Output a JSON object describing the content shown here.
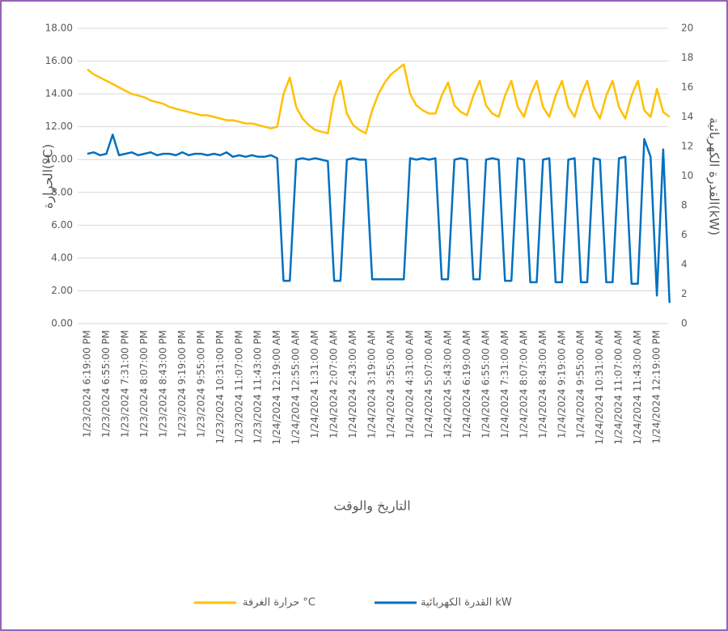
{
  "chart_data": {
    "type": "line",
    "categories": [
      "1/23/2024 6:19:00 PM",
      null,
      null,
      "1/23/2024 6:55:00 PM",
      null,
      null,
      "1/23/2024 7:31:00 PM",
      null,
      null,
      "1/23/2024 8:07:00 PM",
      null,
      null,
      "1/23/2024 8:43:00 PM",
      null,
      null,
      "1/23/2024 9:19:00 PM",
      null,
      null,
      "1/23/2024 9:55:00 PM",
      null,
      null,
      "1/23/2024 10:31:00 PM",
      null,
      null,
      "1/23/2024 11:07:00 PM",
      null,
      null,
      "1/23/2024 11:43:00 PM",
      null,
      null,
      "1/24/2024 12:19:00 AM",
      null,
      null,
      "1/24/2024 12:55:00 AM",
      null,
      null,
      "1/24/2024 1:31:00 AM",
      null,
      null,
      "1/24/2024 2:07:00 AM",
      null,
      null,
      "1/24/2024 2:43:00 AM",
      null,
      null,
      "1/24/2024 3:19:00 AM",
      null,
      null,
      "1/24/2024 3:55:00 AM",
      null,
      null,
      "1/24/2024 4:31:00 AM",
      null,
      null,
      "1/24/2024 5:07:00 AM",
      null,
      null,
      "1/24/2024 5:43:00 AM",
      null,
      null,
      "1/24/2024 6:19:00 AM",
      null,
      null,
      "1/24/2024 6:55:00 AM",
      null,
      null,
      "1/24/2024 7:31:00 AM",
      null,
      null,
      "1/24/2024 8:07:00 AM",
      null,
      null,
      "1/24/2024 8:43:00 AM",
      null,
      null,
      "1/24/2024 9:19:00 AM",
      null,
      null,
      "1/24/2024 9:55:00 AM",
      null,
      null,
      "1/24/2024 10:31:00 AM",
      null,
      null,
      "1/24/2024 11:07:00 AM",
      null,
      null,
      "1/24/2024 11:43:00 AM",
      null,
      null,
      "1/24/2024 12:19:00 PM",
      null,
      null
    ],
    "series": [
      {
        "name": "حرارة الغرفة °C",
        "color": "#FFC000",
        "axis": "y",
        "values": [
          15.5,
          15.2,
          15.0,
          14.8,
          14.6,
          14.4,
          14.2,
          14.0,
          13.9,
          13.8,
          13.6,
          13.5,
          13.4,
          13.2,
          13.1,
          13.0,
          12.9,
          12.8,
          12.7,
          12.7,
          12.6,
          12.5,
          12.4,
          12.4,
          12.3,
          12.2,
          12.2,
          12.1,
          12.0,
          11.9,
          12.0,
          14.0,
          15.0,
          13.2,
          12.5,
          12.1,
          11.8,
          11.7,
          11.6,
          13.8,
          14.8,
          12.8,
          12.1,
          11.8,
          11.6,
          13.0,
          14.0,
          14.7,
          15.2,
          15.5,
          15.8,
          14.0,
          13.3,
          13.0,
          12.8,
          12.8,
          13.9,
          14.7,
          13.3,
          12.9,
          12.7,
          13.9,
          14.8,
          13.3,
          12.8,
          12.6,
          13.9,
          14.8,
          13.2,
          12.6,
          13.9,
          14.8,
          13.2,
          12.6,
          13.9,
          14.8,
          13.2,
          12.6,
          13.9,
          14.8,
          13.2,
          12.5,
          13.9,
          14.8,
          13.2,
          12.5,
          13.9,
          14.8,
          13.0,
          12.6,
          14.3,
          12.9,
          12.6
        ]
      },
      {
        "name": "القدرة الكهربائية kW",
        "color": "#0070C0",
        "axis": "y2",
        "values": [
          11.5,
          11.6,
          11.4,
          11.5,
          12.8,
          11.4,
          11.5,
          11.6,
          11.4,
          11.5,
          11.6,
          11.4,
          11.5,
          11.5,
          11.4,
          11.6,
          11.4,
          11.5,
          11.5,
          11.4,
          11.5,
          11.4,
          11.6,
          11.3,
          11.4,
          11.3,
          11.4,
          11.3,
          11.3,
          11.4,
          11.2,
          2.9,
          2.9,
          11.1,
          11.2,
          11.1,
          11.2,
          11.1,
          11.0,
          2.9,
          2.9,
          11.1,
          11.2,
          11.1,
          11.1,
          3.0,
          3.0,
          3.0,
          3.0,
          3.0,
          3.0,
          11.2,
          11.1,
          11.2,
          11.1,
          11.2,
          3.0,
          3.0,
          11.1,
          11.2,
          11.1,
          3.0,
          3.0,
          11.1,
          11.2,
          11.1,
          2.9,
          2.9,
          11.2,
          11.1,
          2.8,
          2.8,
          11.1,
          11.2,
          2.8,
          2.8,
          11.1,
          11.2,
          2.8,
          2.8,
          11.2,
          11.1,
          2.8,
          2.8,
          11.2,
          11.3,
          2.7,
          2.7,
          12.5,
          11.3,
          1.9,
          11.8,
          1.4
        ]
      }
    ],
    "xlabel": "التاريخ والوقت",
    "ylabel": "الحرارة(ºC)",
    "y2label": "القدرة الكهربائية(kW)",
    "ylim": [
      0,
      18
    ],
    "yticks": [
      {
        "value": 0,
        "label": "0.00"
      },
      {
        "value": 2,
        "label": "2.00"
      },
      {
        "value": 4,
        "label": "4.00"
      },
      {
        "value": 6,
        "label": "6.00"
      },
      {
        "value": 8,
        "label": "8.00"
      },
      {
        "value": 10,
        "label": "10.00"
      },
      {
        "value": 12,
        "label": "12.00"
      },
      {
        "value": 14,
        "label": "14.00"
      },
      {
        "value": 16,
        "label": "16.00"
      },
      {
        "value": 18,
        "label": "18.00"
      }
    ],
    "y2lim": [
      0,
      20
    ],
    "y2ticks": [
      0,
      2,
      4,
      6,
      8,
      10,
      12,
      14,
      16,
      18,
      20
    ],
    "grid": true,
    "legend": "bottom"
  }
}
